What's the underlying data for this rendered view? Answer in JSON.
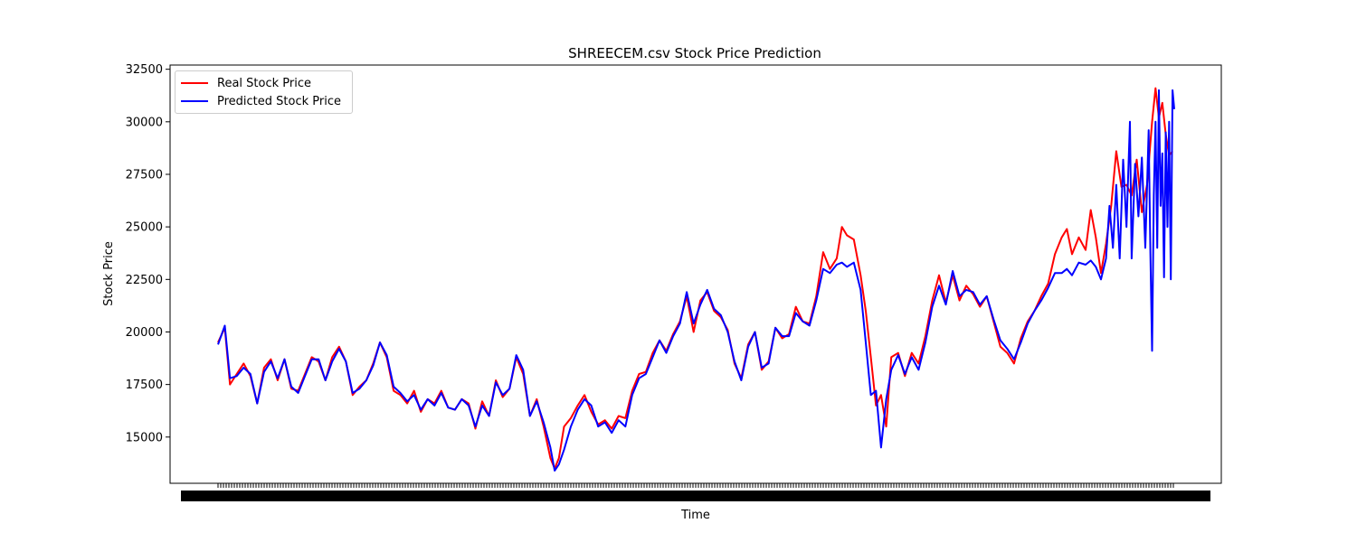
{
  "chart_data": {
    "type": "line",
    "title": "SHREECEM.csv Stock Price Prediction",
    "xlabel": "Time",
    "ylabel": "Stock Price",
    "ylim": [
      12800,
      32700
    ],
    "yticks": [
      15000,
      17500,
      20000,
      22500,
      25000,
      27500,
      30000,
      32500
    ],
    "ytick_labels": [
      "15000",
      "17500",
      "20000",
      "22500",
      "25000",
      "27500",
      "30000",
      "32500"
    ],
    "x_tick_labels_note": "dense overlapping date ticks (illegible)",
    "legend": "top-left",
    "series": [
      {
        "name": "Real Stock Price",
        "color": "#ff0000",
        "values": [
          [
            0,
            19500
          ],
          [
            8,
            20200
          ],
          [
            14,
            17500
          ],
          [
            22,
            18000
          ],
          [
            30,
            18500
          ],
          [
            38,
            17900
          ],
          [
            46,
            16600
          ],
          [
            54,
            18300
          ],
          [
            62,
            18700
          ],
          [
            70,
            17700
          ],
          [
            78,
            18700
          ],
          [
            86,
            17300
          ],
          [
            94,
            17200
          ],
          [
            102,
            18000
          ],
          [
            110,
            18800
          ],
          [
            118,
            18600
          ],
          [
            126,
            17700
          ],
          [
            134,
            18800
          ],
          [
            142,
            19300
          ],
          [
            150,
            18600
          ],
          [
            158,
            17000
          ],
          [
            166,
            17400
          ],
          [
            174,
            17700
          ],
          [
            182,
            18500
          ],
          [
            190,
            19500
          ],
          [
            198,
            18800
          ],
          [
            206,
            17200
          ],
          [
            214,
            17000
          ],
          [
            222,
            16600
          ],
          [
            230,
            17200
          ],
          [
            238,
            16200
          ],
          [
            246,
            16800
          ],
          [
            254,
            16600
          ],
          [
            262,
            17200
          ],
          [
            270,
            16400
          ],
          [
            278,
            16300
          ],
          [
            286,
            16800
          ],
          [
            294,
            16600
          ],
          [
            302,
            15400
          ],
          [
            310,
            16700
          ],
          [
            318,
            16000
          ],
          [
            326,
            17700
          ],
          [
            334,
            16900
          ],
          [
            342,
            17300
          ],
          [
            350,
            18800
          ],
          [
            358,
            18000
          ],
          [
            366,
            16000
          ],
          [
            374,
            16800
          ],
          [
            382,
            15500
          ],
          [
            390,
            14000
          ],
          [
            395,
            13500
          ],
          [
            400,
            14000
          ],
          [
            406,
            15500
          ],
          [
            414,
            15900
          ],
          [
            422,
            16500
          ],
          [
            430,
            17000
          ],
          [
            438,
            16200
          ],
          [
            446,
            15600
          ],
          [
            454,
            15800
          ],
          [
            462,
            15400
          ],
          [
            470,
            16000
          ],
          [
            478,
            15900
          ],
          [
            486,
            17200
          ],
          [
            494,
            18000
          ],
          [
            502,
            18100
          ],
          [
            510,
            19000
          ],
          [
            518,
            19600
          ],
          [
            526,
            19100
          ],
          [
            534,
            19900
          ],
          [
            542,
            20500
          ],
          [
            550,
            21700
          ],
          [
            558,
            20000
          ],
          [
            566,
            21500
          ],
          [
            574,
            21900
          ],
          [
            582,
            21000
          ],
          [
            590,
            20700
          ],
          [
            598,
            20100
          ],
          [
            606,
            18500
          ],
          [
            614,
            17800
          ],
          [
            622,
            19400
          ],
          [
            630,
            20000
          ],
          [
            638,
            18200
          ],
          [
            646,
            18600
          ],
          [
            654,
            20200
          ],
          [
            662,
            19700
          ],
          [
            670,
            19900
          ],
          [
            678,
            21200
          ],
          [
            686,
            20500
          ],
          [
            694,
            20400
          ],
          [
            702,
            21700
          ],
          [
            710,
            23800
          ],
          [
            718,
            23000
          ],
          [
            726,
            23500
          ],
          [
            732,
            25000
          ],
          [
            738,
            24600
          ],
          [
            746,
            24400
          ],
          [
            754,
            22700
          ],
          [
            760,
            21000
          ],
          [
            766,
            18800
          ],
          [
            772,
            16500
          ],
          [
            778,
            17000
          ],
          [
            784,
            15500
          ],
          [
            790,
            18800
          ],
          [
            798,
            19000
          ],
          [
            806,
            17900
          ],
          [
            814,
            19000
          ],
          [
            822,
            18500
          ],
          [
            830,
            19800
          ],
          [
            838,
            21500
          ],
          [
            846,
            22700
          ],
          [
            854,
            21400
          ],
          [
            862,
            22700
          ],
          [
            870,
            21500
          ],
          [
            878,
            22200
          ],
          [
            886,
            21800
          ],
          [
            894,
            21200
          ],
          [
            902,
            21700
          ],
          [
            910,
            20500
          ],
          [
            918,
            19300
          ],
          [
            926,
            19000
          ],
          [
            934,
            18500
          ],
          [
            942,
            19700
          ],
          [
            950,
            20500
          ],
          [
            958,
            21000
          ],
          [
            966,
            21700
          ],
          [
            974,
            22300
          ],
          [
            982,
            23700
          ],
          [
            990,
            24500
          ],
          [
            996,
            24900
          ],
          [
            1002,
            23700
          ],
          [
            1010,
            24500
          ],
          [
            1018,
            23900
          ],
          [
            1024,
            25800
          ],
          [
            1030,
            24500
          ],
          [
            1036,
            22800
          ],
          [
            1042,
            24200
          ],
          [
            1048,
            26000
          ],
          [
            1054,
            28600
          ],
          [
            1060,
            26900
          ],
          [
            1066,
            27000
          ],
          [
            1072,
            26500
          ],
          [
            1078,
            28200
          ],
          [
            1084,
            25700
          ],
          [
            1090,
            27000
          ],
          [
            1096,
            30000
          ],
          [
            1100,
            31600
          ],
          [
            1104,
            30200
          ],
          [
            1108,
            30900
          ],
          [
            1112,
            29400
          ],
          [
            1116,
            28400
          ],
          [
            1120,
            28600
          ]
        ]
      },
      {
        "name": "Predicted Stock Price",
        "color": "#0000ff",
        "values": [
          [
            0,
            19400
          ],
          [
            8,
            20300
          ],
          [
            14,
            17800
          ],
          [
            22,
            17900
          ],
          [
            30,
            18300
          ],
          [
            38,
            18000
          ],
          [
            46,
            16600
          ],
          [
            54,
            18100
          ],
          [
            62,
            18600
          ],
          [
            70,
            17800
          ],
          [
            78,
            18700
          ],
          [
            86,
            17400
          ],
          [
            94,
            17100
          ],
          [
            102,
            17900
          ],
          [
            110,
            18700
          ],
          [
            118,
            18700
          ],
          [
            126,
            17700
          ],
          [
            134,
            18600
          ],
          [
            142,
            19200
          ],
          [
            150,
            18600
          ],
          [
            158,
            17100
          ],
          [
            166,
            17300
          ],
          [
            174,
            17700
          ],
          [
            182,
            18400
          ],
          [
            190,
            19500
          ],
          [
            198,
            18900
          ],
          [
            206,
            17400
          ],
          [
            214,
            17100
          ],
          [
            222,
            16700
          ],
          [
            230,
            17000
          ],
          [
            238,
            16300
          ],
          [
            246,
            16800
          ],
          [
            254,
            16500
          ],
          [
            262,
            17100
          ],
          [
            270,
            16400
          ],
          [
            278,
            16300
          ],
          [
            286,
            16800
          ],
          [
            294,
            16500
          ],
          [
            302,
            15500
          ],
          [
            310,
            16500
          ],
          [
            318,
            16000
          ],
          [
            326,
            17600
          ],
          [
            334,
            17000
          ],
          [
            342,
            17300
          ],
          [
            350,
            18900
          ],
          [
            358,
            18200
          ],
          [
            366,
            16000
          ],
          [
            374,
            16700
          ],
          [
            382,
            15700
          ],
          [
            390,
            14500
          ],
          [
            395,
            13400
          ],
          [
            400,
            13700
          ],
          [
            406,
            14400
          ],
          [
            414,
            15500
          ],
          [
            422,
            16300
          ],
          [
            430,
            16800
          ],
          [
            438,
            16500
          ],
          [
            446,
            15500
          ],
          [
            454,
            15700
          ],
          [
            462,
            15200
          ],
          [
            470,
            15800
          ],
          [
            478,
            15500
          ],
          [
            486,
            17000
          ],
          [
            494,
            17800
          ],
          [
            502,
            18000
          ],
          [
            510,
            18800
          ],
          [
            518,
            19600
          ],
          [
            526,
            19000
          ],
          [
            534,
            19800
          ],
          [
            542,
            20400
          ],
          [
            550,
            21900
          ],
          [
            558,
            20400
          ],
          [
            566,
            21300
          ],
          [
            574,
            22000
          ],
          [
            582,
            21100
          ],
          [
            590,
            20800
          ],
          [
            598,
            20000
          ],
          [
            606,
            18600
          ],
          [
            614,
            17700
          ],
          [
            622,
            19300
          ],
          [
            630,
            20000
          ],
          [
            638,
            18300
          ],
          [
            646,
            18500
          ],
          [
            654,
            20200
          ],
          [
            662,
            19800
          ],
          [
            670,
            19800
          ],
          [
            678,
            20900
          ],
          [
            686,
            20500
          ],
          [
            694,
            20300
          ],
          [
            702,
            21500
          ],
          [
            710,
            23000
          ],
          [
            718,
            22800
          ],
          [
            726,
            23200
          ],
          [
            732,
            23300
          ],
          [
            738,
            23100
          ],
          [
            746,
            23300
          ],
          [
            754,
            22000
          ],
          [
            760,
            19500
          ],
          [
            766,
            17000
          ],
          [
            772,
            17200
          ],
          [
            778,
            14500
          ],
          [
            784,
            16800
          ],
          [
            790,
            18200
          ],
          [
            798,
            18900
          ],
          [
            806,
            18000
          ],
          [
            814,
            18800
          ],
          [
            822,
            18200
          ],
          [
            830,
            19500
          ],
          [
            838,
            21200
          ],
          [
            846,
            22200
          ],
          [
            854,
            21300
          ],
          [
            862,
            22900
          ],
          [
            870,
            21700
          ],
          [
            878,
            22000
          ],
          [
            886,
            21900
          ],
          [
            894,
            21300
          ],
          [
            902,
            21700
          ],
          [
            910,
            20600
          ],
          [
            918,
            19600
          ],
          [
            926,
            19200
          ],
          [
            934,
            18700
          ],
          [
            942,
            19500
          ],
          [
            950,
            20400
          ],
          [
            958,
            21000
          ],
          [
            966,
            21500
          ],
          [
            974,
            22100
          ],
          [
            982,
            22800
          ],
          [
            990,
            22800
          ],
          [
            996,
            23000
          ],
          [
            1002,
            22700
          ],
          [
            1010,
            23300
          ],
          [
            1018,
            23200
          ],
          [
            1024,
            23400
          ],
          [
            1030,
            23100
          ],
          [
            1036,
            22500
          ],
          [
            1042,
            23500
          ],
          [
            1046,
            26000
          ],
          [
            1050,
            24000
          ],
          [
            1054,
            27000
          ],
          [
            1058,
            23500
          ],
          [
            1062,
            28200
          ],
          [
            1066,
            25000
          ],
          [
            1070,
            30000
          ],
          [
            1072,
            23500
          ],
          [
            1076,
            28000
          ],
          [
            1080,
            25500
          ],
          [
            1084,
            28300
          ],
          [
            1088,
            24000
          ],
          [
            1092,
            29600
          ],
          [
            1094,
            23800
          ],
          [
            1096,
            19100
          ],
          [
            1098,
            26500
          ],
          [
            1100,
            30000
          ],
          [
            1102,
            24000
          ],
          [
            1104,
            31500
          ],
          [
            1106,
            26000
          ],
          [
            1108,
            28500
          ],
          [
            1110,
            22600
          ],
          [
            1112,
            29500
          ],
          [
            1114,
            25000
          ],
          [
            1116,
            30000
          ],
          [
            1118,
            22500
          ],
          [
            1120,
            31500
          ],
          [
            1122,
            30600
          ]
        ]
      }
    ]
  }
}
